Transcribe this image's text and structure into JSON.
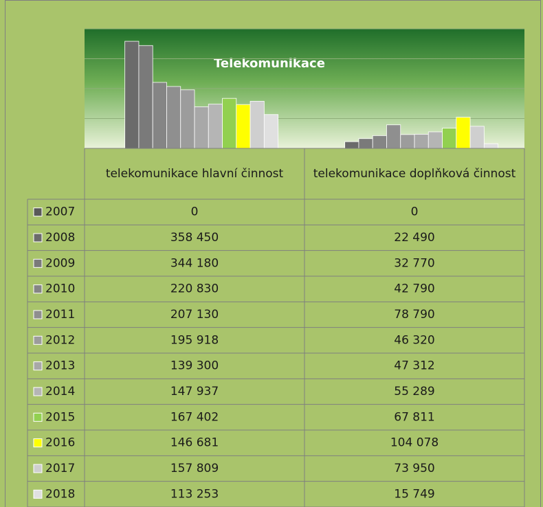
{
  "chart_data": {
    "type": "bar",
    "title": "Telekomunikace",
    "categories": [
      "telekomunikace hlavní činnost",
      "telekomunikace doplňková činnost"
    ],
    "ylim": [
      0,
      400000
    ],
    "yticks": [
      0,
      100000,
      200000,
      300000,
      400000
    ],
    "grid": true,
    "series": [
      {
        "name": "2007",
        "color": "#595959",
        "values": [
          0,
          0
        ],
        "value_labels": [
          "0",
          "0"
        ]
      },
      {
        "name": "2008",
        "color": "#6b6b6b",
        "values": [
          358450,
          22490
        ],
        "value_labels": [
          "358 450",
          "22 490"
        ]
      },
      {
        "name": "2009",
        "color": "#7a7a7a",
        "values": [
          344180,
          32770
        ],
        "value_labels": [
          "344 180",
          "32 770"
        ]
      },
      {
        "name": "2010",
        "color": "#858585",
        "values": [
          220830,
          42790
        ],
        "value_labels": [
          "220 830",
          "42 790"
        ]
      },
      {
        "name": "2011",
        "color": "#8f8f8f",
        "values": [
          207130,
          78790
        ],
        "value_labels": [
          "207 130",
          "78 790"
        ]
      },
      {
        "name": "2012",
        "color": "#9c9c9c",
        "values": [
          195918,
          46320
        ],
        "value_labels": [
          "195 918",
          "46 320"
        ]
      },
      {
        "name": "2013",
        "color": "#a8a8a8",
        "values": [
          139300,
          47312
        ],
        "value_labels": [
          "139 300",
          "47 312"
        ]
      },
      {
        "name": "2014",
        "color": "#b5b5b5",
        "values": [
          147937,
          55289
        ],
        "value_labels": [
          "147 937",
          "55 289"
        ]
      },
      {
        "name": "2015",
        "color": "#92d050",
        "values": [
          167402,
          67811
        ],
        "value_labels": [
          "167 402",
          "67 811"
        ]
      },
      {
        "name": "2016",
        "color": "#ffff00",
        "values": [
          146681,
          104078
        ],
        "value_labels": [
          "146 681",
          "104 078"
        ]
      },
      {
        "name": "2017",
        "color": "#cfcfcf",
        "values": [
          157809,
          73950
        ],
        "value_labels": [
          "157 809",
          "73 950"
        ]
      },
      {
        "name": "2018",
        "color": "#e0e0e0",
        "values": [
          113253,
          15749
        ],
        "value_labels": [
          "113 253",
          "15 749"
        ]
      }
    ]
  }
}
